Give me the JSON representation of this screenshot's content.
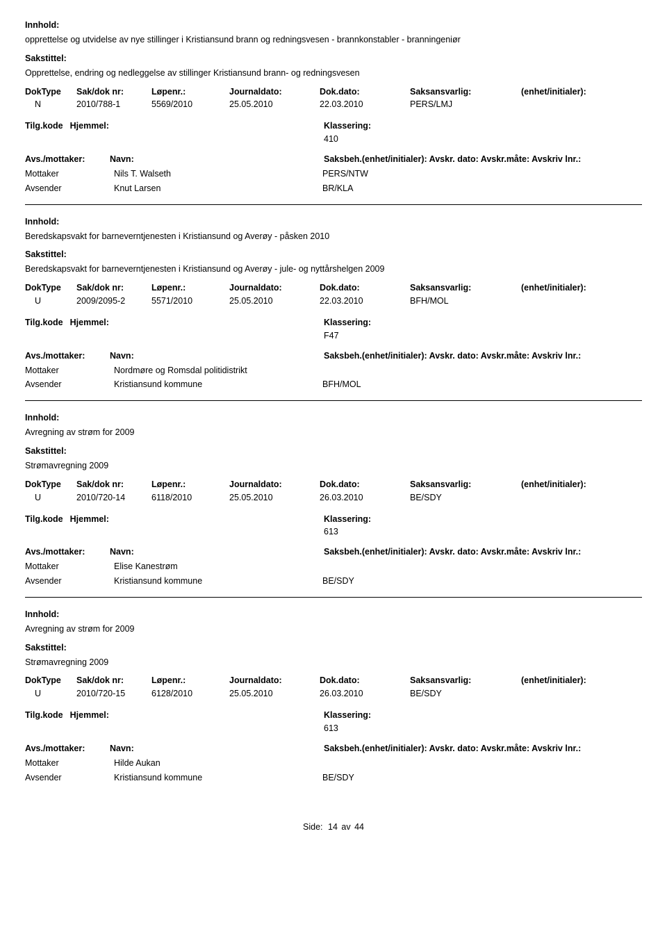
{
  "labels": {
    "innhold": "Innhold:",
    "sakstittel": "Sakstittel:",
    "doktype": "DokType",
    "sakdoknr": "Sak/dok nr:",
    "lopenr": "Løpenr.:",
    "journaldato": "Journaldato:",
    "dokdato": "Dok.dato:",
    "saksansvarlig": "Saksansvarlig:",
    "enhet": "(enhet/initialer):",
    "tilgkode": "Tilg.kode",
    "hjemmel": "Hjemmel:",
    "klassering": "Klassering:",
    "avsmottaker": "Avs./mottaker:",
    "navn": "Navn:",
    "saksbeh_line": "Saksbeh.(enhet/initialer): Avskr. dato: Avskr.måte: Avskriv lnr.:",
    "mottaker": "Mottaker",
    "avsender": "Avsender"
  },
  "records": [
    {
      "innhold": "opprettelse og utvidelse av nye stillinger i Kristiansund brann og redningsvesen - brannkonstabler - branningeniør",
      "sakstittel": "Opprettelse, endring og nedleggelse av stillinger Kristiansund brann- og redningsvesen",
      "doktype": "N",
      "sakdoknr": "2010/788-1",
      "lopenr": "5569/2010",
      "journaldato": "25.05.2010",
      "dokdato": "22.03.2010",
      "saksansvarlig": "PERS/LMJ",
      "klassering": "410",
      "mottaker_name": "Nils T. Walseth",
      "mottaker_code": "PERS/NTW",
      "avsender_name": "Knut Larsen",
      "avsender_code": "BR/KLA"
    },
    {
      "innhold": "Beredskapsvakt for barneverntjenesten i Kristiansund og Averøy - påsken 2010",
      "sakstittel": "Beredskapsvakt for barneverntjenesten i Kristiansund og Averøy - jule- og nyttårshelgen 2009",
      "doktype": "U",
      "sakdoknr": "2009/2095-2",
      "lopenr": "5571/2010",
      "journaldato": "25.05.2010",
      "dokdato": "22.03.2010",
      "saksansvarlig": "BFH/MOL",
      "klassering": "F47",
      "mottaker_name": "Nordmøre og Romsdal politidistrikt",
      "mottaker_code": "",
      "avsender_name": "Kristiansund kommune",
      "avsender_code": "BFH/MOL"
    },
    {
      "innhold": "Avregning av strøm for 2009",
      "sakstittel": "Strømavregning 2009",
      "doktype": "U",
      "sakdoknr": "2010/720-14",
      "lopenr": "6118/2010",
      "journaldato": "25.05.2010",
      "dokdato": "26.03.2010",
      "saksansvarlig": "BE/SDY",
      "klassering": "613",
      "mottaker_name": "Elise Kanestrøm",
      "mottaker_code": "",
      "avsender_name": "Kristiansund kommune",
      "avsender_code": "BE/SDY"
    },
    {
      "innhold": "Avregning av strøm for 2009",
      "sakstittel": "Strømavregning 2009",
      "doktype": "U",
      "sakdoknr": "2010/720-15",
      "lopenr": "6128/2010",
      "journaldato": "25.05.2010",
      "dokdato": "26.03.2010",
      "saksansvarlig": "BE/SDY",
      "klassering": "613",
      "mottaker_name": "Hilde Aukan",
      "mottaker_code": "",
      "avsender_name": "Kristiansund kommune",
      "avsender_code": "BE/SDY"
    }
  ],
  "footer": {
    "label": "Side:",
    "current": "14",
    "sep": "av",
    "total": "44"
  }
}
